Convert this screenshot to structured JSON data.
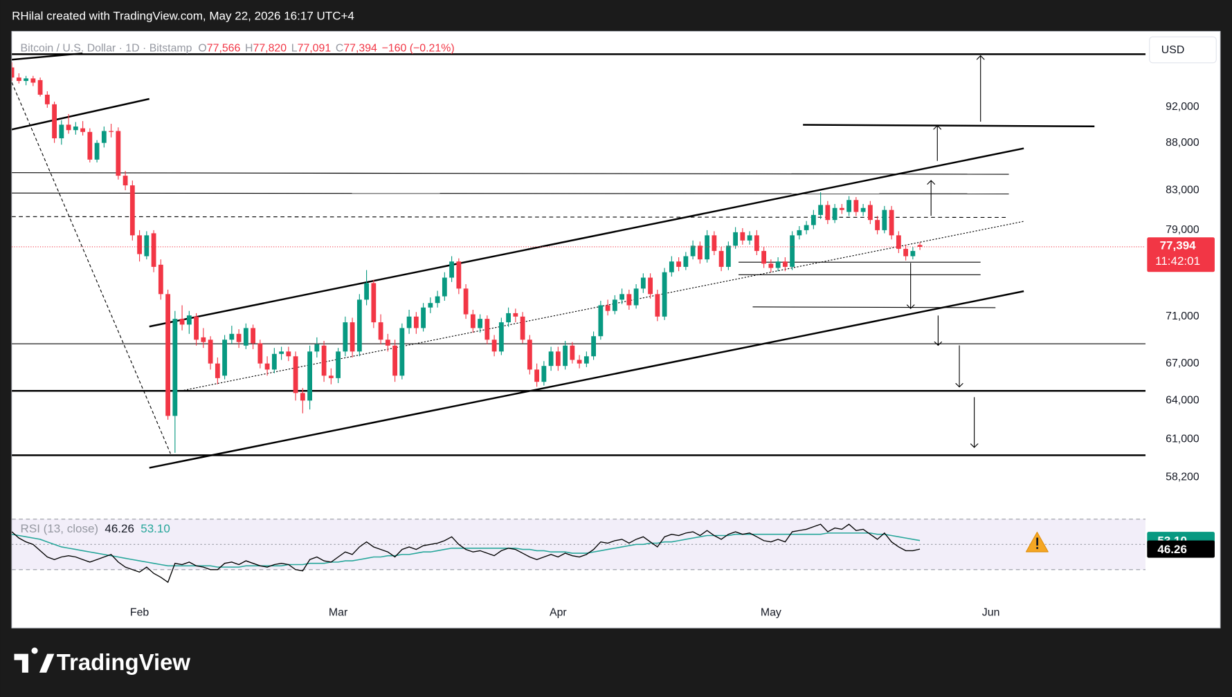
{
  "header": {
    "credit": "RHilal created with TradingView.com, May 22, 2026 16:17 UTC+4"
  },
  "footer": {
    "brand": "TradingView"
  },
  "chart_data": {
    "type": "candlestick",
    "currency": "USD",
    "legend": {
      "symbol": "Bitcoin / U.S. Dollar · 1D · Bitstamp",
      "items": [
        {
          "key": "O",
          "value": "77,566"
        },
        {
          "key": "H",
          "value": "77,820"
        },
        {
          "key": "L",
          "value": "77,091"
        },
        {
          "key": "C",
          "value": "77,394"
        }
      ],
      "change": "−160 (−0.21%)"
    },
    "log": true,
    "grid": false,
    "up_color": "#089981",
    "down_color": "#f23645",
    "xlim": [
      0,
      159.8
    ],
    "xticks": [
      {
        "value": 18,
        "label": "Feb"
      },
      {
        "value": 46,
        "label": "Mar"
      },
      {
        "value": 77,
        "label": "Apr"
      },
      {
        "value": 107,
        "label": "May"
      },
      {
        "value": 138,
        "label": "Jun"
      }
    ],
    "ylim": [
      56000,
      101000
    ],
    "yticks": [
      {
        "value": 92000,
        "label": "92,000"
      },
      {
        "value": 88000,
        "label": "88,000"
      },
      {
        "value": 83000,
        "label": "83,000"
      },
      {
        "value": 79000,
        "label": "79,000"
      },
      {
        "value": 71000,
        "label": "71,000"
      },
      {
        "value": 67000,
        "label": "67,000"
      },
      {
        "value": 64000,
        "label": "64,000"
      },
      {
        "value": 61000,
        "label": "61,000"
      },
      {
        "value": 58200,
        "label": "58,200"
      }
    ],
    "last_label": "77,394",
    "countdown": "11:42:01",
    "ohlc": [
      [
        96600,
        97200,
        95000,
        95400
      ],
      [
        95400,
        95900,
        94700,
        95000
      ],
      [
        95000,
        95600,
        94500,
        95300
      ],
      [
        95300,
        95600,
        94400,
        94800
      ],
      [
        95100,
        95400,
        93200,
        93400
      ],
      [
        93400,
        93800,
        91900,
        92300
      ],
      [
        92300,
        92600,
        88000,
        88500
      ],
      [
        88500,
        90500,
        87800,
        90000
      ],
      [
        90000,
        91200,
        89000,
        89400
      ],
      [
        89400,
        90300,
        88900,
        89800
      ],
      [
        89600,
        90400,
        88800,
        89200
      ],
      [
        89200,
        89600,
        85900,
        86200
      ],
      [
        86200,
        88300,
        85900,
        88000
      ],
      [
        88000,
        89800,
        87500,
        89300
      ],
      [
        89300,
        90100,
        88600,
        89200
      ],
      [
        89300,
        89700,
        84100,
        84500
      ],
      [
        84500,
        85000,
        83000,
        83500
      ],
      [
        83500,
        84000,
        78000,
        78500
      ],
      [
        78500,
        79000,
        76000,
        76700
      ],
      [
        76500,
        78900,
        76200,
        78500
      ],
      [
        78700,
        79000,
        75000,
        75500
      ],
      [
        75700,
        76200,
        72500,
        73000
      ],
      [
        73000,
        73400,
        62500,
        62800
      ],
      [
        62800,
        71500,
        60000,
        70800
      ],
      [
        70800,
        72000,
        69800,
        70300
      ],
      [
        70300,
        71500,
        69500,
        71100
      ],
      [
        71000,
        71300,
        68500,
        69000
      ],
      [
        69200,
        70000,
        68300,
        68800
      ],
      [
        69000,
        69300,
        66500,
        67000
      ],
      [
        67000,
        67500,
        65300,
        65800
      ],
      [
        66000,
        69400,
        65700,
        69000
      ],
      [
        69000,
        70200,
        68600,
        69500
      ],
      [
        69500,
        69900,
        68300,
        68800
      ],
      [
        68500,
        70400,
        68200,
        70000
      ],
      [
        70000,
        70300,
        68200,
        68700
      ],
      [
        68700,
        69000,
        66600,
        67000
      ],
      [
        67000,
        67600,
        66000,
        66500
      ],
      [
        66500,
        68300,
        66200,
        67800
      ],
      [
        67800,
        68400,
        67300,
        68000
      ],
      [
        68000,
        68400,
        67200,
        67600
      ],
      [
        67600,
        68000,
        64000,
        64600
      ],
      [
        64600,
        65000,
        63000,
        64000
      ],
      [
        64000,
        68500,
        63300,
        68000
      ],
      [
        68000,
        69200,
        67500,
        68600
      ],
      [
        68500,
        68900,
        65500,
        66000
      ],
      [
        66000,
        66600,
        65300,
        65800
      ],
      [
        65800,
        68300,
        65400,
        68000
      ],
      [
        68000,
        71000,
        67600,
        70500
      ],
      [
        70500,
        70900,
        67500,
        68000
      ],
      [
        68000,
        73000,
        67600,
        72500
      ],
      [
        72500,
        75200,
        72000,
        74000
      ],
      [
        74000,
        74300,
        70000,
        70500
      ],
      [
        70500,
        71200,
        68600,
        69000
      ],
      [
        69000,
        69500,
        68000,
        68500
      ],
      [
        68500,
        69000,
        65500,
        66000
      ],
      [
        66000,
        70400,
        65700,
        70000
      ],
      [
        70000,
        71600,
        69500,
        71000
      ],
      [
        71000,
        71400,
        69500,
        70000
      ],
      [
        70000,
        72200,
        69700,
        71800
      ],
      [
        71800,
        72700,
        71300,
        72200
      ],
      [
        72200,
        73300,
        71800,
        72800
      ],
      [
        72800,
        75000,
        72400,
        74500
      ],
      [
        74500,
        76500,
        74100,
        76000
      ],
      [
        76000,
        76300,
        73000,
        73500
      ],
      [
        73500,
        73900,
        70800,
        71200
      ],
      [
        71200,
        71600,
        69600,
        70000
      ],
      [
        70000,
        71200,
        69600,
        70800
      ],
      [
        70800,
        71100,
        68600,
        69000
      ],
      [
        69000,
        69400,
        67600,
        68000
      ],
      [
        68000,
        70900,
        67700,
        70500
      ],
      [
        70500,
        71800,
        70100,
        71300
      ],
      [
        71300,
        71700,
        70500,
        71000
      ],
      [
        71000,
        71400,
        68700,
        69000
      ],
      [
        69000,
        69400,
        66100,
        66500
      ],
      [
        66500,
        67000,
        65100,
        65500
      ],
      [
        65500,
        67200,
        65200,
        66800
      ],
      [
        66800,
        68400,
        66400,
        68000
      ],
      [
        68000,
        68400,
        66400,
        66800
      ],
      [
        66800,
        68900,
        66500,
        68500
      ],
      [
        68500,
        68800,
        67000,
        67300
      ],
      [
        67300,
        67700,
        66600,
        67000
      ],
      [
        67000,
        68000,
        66700,
        67600
      ],
      [
        67600,
        69700,
        67300,
        69300
      ],
      [
        69300,
        72400,
        69000,
        72000
      ],
      [
        72000,
        72500,
        71100,
        71500
      ],
      [
        71500,
        72900,
        71200,
        72500
      ],
      [
        72500,
        73500,
        72100,
        73000
      ],
      [
        73000,
        73400,
        71600,
        72000
      ],
      [
        72000,
        73900,
        71700,
        73500
      ],
      [
        73500,
        74900,
        73100,
        74500
      ],
      [
        74500,
        74900,
        72600,
        73000
      ],
      [
        73000,
        73400,
        70600,
        71000
      ],
      [
        71000,
        75400,
        70700,
        75000
      ],
      [
        75000,
        76500,
        74600,
        76000
      ],
      [
        76000,
        76400,
        75100,
        75500
      ],
      [
        75500,
        76900,
        75200,
        76500
      ],
      [
        76500,
        78000,
        76200,
        77500
      ],
      [
        77500,
        77900,
        75800,
        76200
      ],
      [
        76200,
        79000,
        75900,
        78500
      ],
      [
        78500,
        78900,
        76600,
        77000
      ],
      [
        77000,
        77400,
        75100,
        75500
      ],
      [
        75500,
        77900,
        75200,
        77500
      ],
      [
        77500,
        79300,
        77200,
        78800
      ],
      [
        78800,
        79200,
        77600,
        78000
      ],
      [
        78000,
        78900,
        77600,
        78500
      ],
      [
        78500,
        79000,
        76600,
        77000
      ],
      [
        77000,
        77400,
        75400,
        75800
      ],
      [
        75800,
        76200,
        75000,
        75400
      ],
      [
        75400,
        76400,
        75100,
        76000
      ],
      [
        76000,
        76400,
        75100,
        75500
      ],
      [
        75500,
        78900,
        75200,
        78500
      ],
      [
        78500,
        79400,
        78100,
        79000
      ],
      [
        79000,
        79900,
        78600,
        79500
      ],
      [
        79500,
        81000,
        79100,
        80500
      ],
      [
        80500,
        82800,
        80100,
        81500
      ],
      [
        81500,
        81900,
        79600,
        80000
      ],
      [
        80000,
        81600,
        79700,
        81200
      ],
      [
        81200,
        81600,
        80600,
        81000
      ],
      [
        80800,
        82400,
        80400,
        82000
      ],
      [
        82000,
        82300,
        80400,
        80800
      ],
      [
        80800,
        81600,
        80400,
        81200
      ],
      [
        81500,
        81900,
        79600,
        80000
      ],
      [
        80000,
        80400,
        78600,
        79000
      ],
      [
        79000,
        81400,
        78700,
        81000
      ],
      [
        81000,
        81400,
        78100,
        78500
      ],
      [
        78500,
        78900,
        76800,
        77200
      ],
      [
        77200,
        77600,
        76100,
        76500
      ],
      [
        76500,
        77400,
        76200,
        77000
      ],
      [
        77566,
        77820,
        77091,
        77394
      ]
    ],
    "rsi": {
      "label": "RSI (13, close)",
      "ylim": [
        18,
        74
      ],
      "levels": [
        70,
        50,
        30
      ],
      "legend_values": [
        "46.26",
        "53.10"
      ],
      "series": [
        {
          "name": "RSI",
          "color": "#000000",
          "values": [
            60,
            55,
            52,
            50,
            45,
            40,
            38,
            40,
            41,
            40,
            38,
            36,
            38,
            40,
            42,
            36,
            32,
            30,
            28,
            32,
            27,
            24,
            20,
            35,
            34,
            36,
            33,
            32,
            30,
            30,
            35,
            36,
            34,
            37,
            35,
            33,
            32,
            34,
            35,
            34,
            30,
            29,
            38,
            40,
            37,
            36,
            40,
            44,
            42,
            48,
            52,
            48,
            46,
            44,
            40,
            46,
            48,
            46,
            49,
            50,
            51,
            53,
            56,
            50,
            46,
            44,
            45,
            43,
            41,
            45,
            47,
            46,
            43,
            40,
            38,
            40,
            42,
            40,
            43,
            41,
            40,
            42,
            46,
            52,
            51,
            53,
            54,
            51,
            54,
            56,
            52,
            48,
            56,
            58,
            57,
            59,
            60,
            57,
            61,
            57,
            54,
            58,
            60,
            58,
            59,
            56,
            53,
            52,
            54,
            52,
            60,
            61,
            62,
            64,
            66,
            60,
            63,
            62,
            66,
            61,
            62,
            58,
            54,
            59,
            52,
            48,
            45,
            45,
            46.26
          ]
        },
        {
          "name": "RSI-based MA",
          "color": "#26a69a",
          "values": [
            58,
            57,
            56,
            55,
            54,
            52,
            50,
            48,
            47,
            46,
            45,
            44,
            43,
            42,
            41,
            40,
            39,
            38,
            37,
            36,
            35,
            34,
            33,
            33,
            33,
            33,
            33,
            33,
            33,
            32,
            32,
            32,
            32,
            33,
            33,
            33,
            33,
            33,
            33,
            34,
            34,
            34,
            35,
            35,
            35,
            36,
            36,
            37,
            37,
            38,
            39,
            40,
            40,
            41,
            41,
            42,
            42,
            43,
            44,
            44,
            45,
            46,
            47,
            47,
            47,
            47,
            47,
            47,
            47,
            47,
            47,
            47,
            46,
            46,
            45,
            45,
            44,
            44,
            44,
            43,
            43,
            43,
            44,
            45,
            46,
            47,
            48,
            49,
            50,
            50,
            51,
            51,
            52,
            52,
            53,
            54,
            55,
            56,
            57,
            57,
            57,
            57,
            58,
            58,
            58,
            58,
            58,
            58,
            58,
            58,
            58,
            58,
            58,
            58,
            58,
            59,
            59,
            59,
            59,
            59,
            59,
            59,
            58,
            58,
            57,
            56,
            55,
            54,
            53.1
          ]
        }
      ]
    }
  }
}
